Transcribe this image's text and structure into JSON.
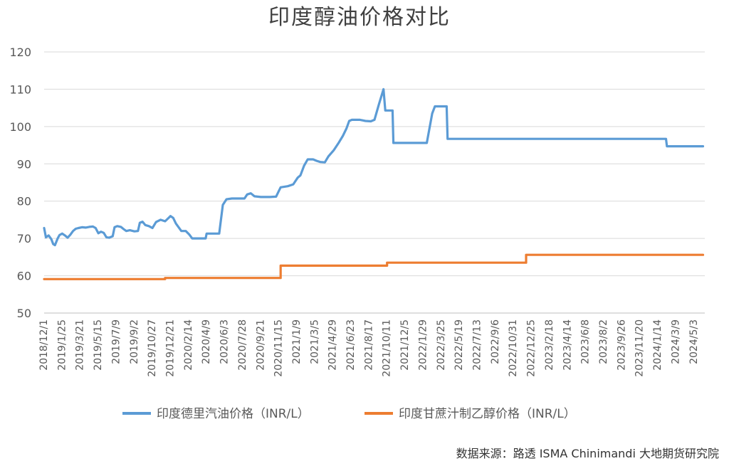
{
  "chart_data": {
    "type": "line",
    "title": "印度醇油价格对比",
    "xlabel": "",
    "ylabel": "",
    "ylim": [
      50,
      120
    ],
    "yticks": [
      50,
      60,
      70,
      80,
      90,
      100,
      110,
      120
    ],
    "x_ticks": [
      "2018/12/1",
      "2019/1/25",
      "2019/3/21",
      "2019/5/15",
      "2019/7/9",
      "2019/9/2",
      "2019/10/27",
      "2019/12/21",
      "2020/2/14",
      "2020/4/9",
      "2020/6/3",
      "2020/7/28",
      "2020/9/21",
      "2020/11/15",
      "2021/1/9",
      "2021/3/5",
      "2021/4/29",
      "2021/6/23",
      "2021/8/17",
      "2021/10/11",
      "2021/12/5",
      "2022/1/29",
      "2022/3/25",
      "2022/5/19",
      "2022/7/13",
      "2022/9/6",
      "2022/10/31",
      "2022/12/25",
      "2023/2/18",
      "2023/4/14",
      "2023/6/8",
      "2023/8/2",
      "2023/9/26",
      "2023/11/20",
      "2024/1/14",
      "2024/3/9",
      "2024/5/3"
    ],
    "x_range": [
      0,
      36.6
    ],
    "series": [
      {
        "name": "印度德里汽油价格（INR/L）",
        "color": "#5B9BD5",
        "points": [
          [
            0,
            72.8
          ],
          [
            0.1,
            70.3
          ],
          [
            0.25,
            70.8
          ],
          [
            0.4,
            69.8
          ],
          [
            0.5,
            68.5
          ],
          [
            0.6,
            68.2
          ],
          [
            0.75,
            70.0
          ],
          [
            0.85,
            70.9
          ],
          [
            1.0,
            71.3
          ],
          [
            1.15,
            70.8
          ],
          [
            1.3,
            70.2
          ],
          [
            1.45,
            71.0
          ],
          [
            1.6,
            72.0
          ],
          [
            1.75,
            72.6
          ],
          [
            1.9,
            72.8
          ],
          [
            2.1,
            73.0
          ],
          [
            2.3,
            72.9
          ],
          [
            2.5,
            73.1
          ],
          [
            2.7,
            73.2
          ],
          [
            2.85,
            72.8
          ],
          [
            3.0,
            71.4
          ],
          [
            3.15,
            71.8
          ],
          [
            3.3,
            71.5
          ],
          [
            3.45,
            70.3
          ],
          [
            3.6,
            70.2
          ],
          [
            3.8,
            70.6
          ],
          [
            3.9,
            73.0
          ],
          [
            4.05,
            73.3
          ],
          [
            4.25,
            73.1
          ],
          [
            4.4,
            72.5
          ],
          [
            4.55,
            72.0
          ],
          [
            4.75,
            72.2
          ],
          [
            5.0,
            71.9
          ],
          [
            5.2,
            72.0
          ],
          [
            5.3,
            74.2
          ],
          [
            5.45,
            74.5
          ],
          [
            5.6,
            73.6
          ],
          [
            5.8,
            73.3
          ],
          [
            6.0,
            72.8
          ],
          [
            6.2,
            74.4
          ],
          [
            6.45,
            75.0
          ],
          [
            6.7,
            74.6
          ],
          [
            6.85,
            75.3
          ],
          [
            7.0,
            76.0
          ],
          [
            7.15,
            75.5
          ],
          [
            7.3,
            74.0
          ],
          [
            7.45,
            73.0
          ],
          [
            7.6,
            72.0
          ],
          [
            7.85,
            72.0
          ],
          [
            8.05,
            71.0
          ],
          [
            8.2,
            70.0
          ],
          [
            8.6,
            70.0
          ],
          [
            8.95,
            70.0
          ],
          [
            9.0,
            71.3
          ],
          [
            9.7,
            71.3
          ],
          [
            9.9,
            79.0
          ],
          [
            10.1,
            80.5
          ],
          [
            10.4,
            80.7
          ],
          [
            10.8,
            80.7
          ],
          [
            11.1,
            80.7
          ],
          [
            11.25,
            81.8
          ],
          [
            11.45,
            82.1
          ],
          [
            11.65,
            81.3
          ],
          [
            12.0,
            81.1
          ],
          [
            12.5,
            81.1
          ],
          [
            12.85,
            81.2
          ],
          [
            13.0,
            82.7
          ],
          [
            13.1,
            83.7
          ],
          [
            13.5,
            84.0
          ],
          [
            13.8,
            84.5
          ],
          [
            14.05,
            86.3
          ],
          [
            14.2,
            86.9
          ],
          [
            14.4,
            89.5
          ],
          [
            14.6,
            91.2
          ],
          [
            14.9,
            91.2
          ],
          [
            15.1,
            90.8
          ],
          [
            15.3,
            90.5
          ],
          [
            15.55,
            90.4
          ],
          [
            15.75,
            92.0
          ],
          [
            16.05,
            93.7
          ],
          [
            16.3,
            95.5
          ],
          [
            16.55,
            97.5
          ],
          [
            16.75,
            99.5
          ],
          [
            16.9,
            101.5
          ],
          [
            17.05,
            101.8
          ],
          [
            17.5,
            101.8
          ],
          [
            17.8,
            101.5
          ],
          [
            18.1,
            101.4
          ],
          [
            18.3,
            101.8
          ],
          [
            18.55,
            106.0
          ],
          [
            18.8,
            110.0
          ],
          [
            18.9,
            104.3
          ],
          [
            19.3,
            104.3
          ],
          [
            19.35,
            95.6
          ],
          [
            20.3,
            95.6
          ],
          [
            21.2,
            95.6
          ],
          [
            21.5,
            103.5
          ],
          [
            21.65,
            105.4
          ],
          [
            22.3,
            105.4
          ],
          [
            22.35,
            96.7
          ],
          [
            26.0,
            96.7
          ],
          [
            30.0,
            96.7
          ],
          [
            34.3,
            96.7
          ],
          [
            34.45,
            96.7
          ],
          [
            34.5,
            94.7
          ],
          [
            36.5,
            94.7
          ]
        ]
      },
      {
        "name": "印度甘蔗汁制乙醇价格（INR/L）",
        "color": "#ED7D31",
        "points": [
          [
            0,
            59.1
          ],
          [
            6.7,
            59.1
          ],
          [
            6.7,
            59.4
          ],
          [
            13.1,
            59.4
          ],
          [
            13.1,
            62.7
          ],
          [
            19.0,
            62.7
          ],
          [
            19.0,
            63.5
          ],
          [
            26.7,
            63.5
          ],
          [
            26.7,
            65.6
          ],
          [
            36.5,
            65.6
          ]
        ]
      }
    ]
  },
  "source_note": "数据来源：路透 ISMA Chinimandi 大地期货研究院"
}
